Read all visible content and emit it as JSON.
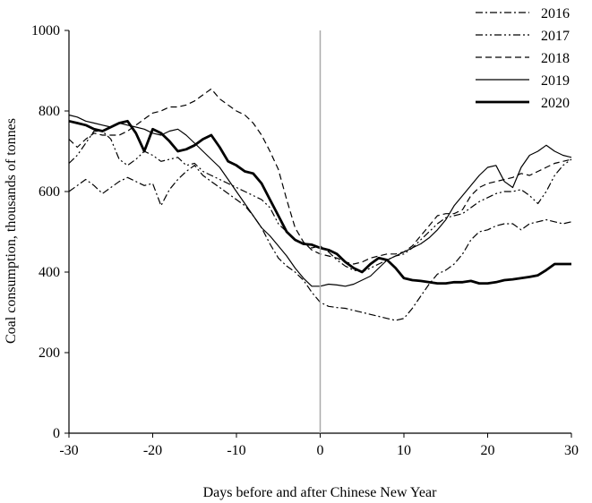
{
  "chart_data": {
    "type": "line",
    "title": "",
    "xlabel": "Days before and after Chinese New Year",
    "ylabel": "Coal consumption, thousands of tonnes",
    "xlim": [
      -30,
      30
    ],
    "ylim": [
      0,
      1000
    ],
    "xticks": [
      -30,
      -20,
      -10,
      0,
      10,
      20,
      30
    ],
    "yticks": [
      0,
      200,
      400,
      600,
      800,
      1000
    ],
    "grid": false,
    "reference_line_x": 0,
    "legend_position": "top-right",
    "x": [
      -30,
      -29,
      -28,
      -27,
      -26,
      -25,
      -24,
      -23,
      -22,
      -21,
      -20,
      -19,
      -18,
      -17,
      -16,
      -15,
      -14,
      -13,
      -12,
      -11,
      -10,
      -9,
      -8,
      -7,
      -6,
      -5,
      -4,
      -3,
      -2,
      -1,
      0,
      1,
      2,
      3,
      4,
      5,
      6,
      7,
      8,
      9,
      10,
      11,
      12,
      13,
      14,
      15,
      16,
      17,
      18,
      19,
      20,
      21,
      22,
      23,
      24,
      25,
      26,
      27,
      28,
      29,
      30
    ],
    "series": [
      {
        "name": "2016",
        "dash": "dash-dot",
        "width": 1.2,
        "values": [
          600,
          615,
          630,
          615,
          595,
          610,
          625,
          635,
          625,
          615,
          620,
          565,
          605,
          630,
          650,
          665,
          640,
          625,
          610,
          595,
          580,
          565,
          540,
          510,
          470,
          435,
          415,
          400,
          380,
          350,
          325,
          315,
          312,
          310,
          305,
          300,
          295,
          290,
          285,
          280,
          285,
          310,
          340,
          370,
          395,
          405,
          420,
          445,
          480,
          500,
          505,
          515,
          520,
          520,
          505,
          520,
          525,
          530,
          525,
          520,
          525
        ]
      },
      {
        "name": "2017",
        "dash": "dash-dot-dot",
        "width": 1.2,
        "values": [
          670,
          690,
          720,
          750,
          750,
          730,
          680,
          665,
          680,
          700,
          690,
          675,
          680,
          685,
          665,
          670,
          650,
          640,
          630,
          620,
          610,
          600,
          590,
          580,
          560,
          520,
          500,
          480,
          470,
          460,
          465,
          450,
          430,
          415,
          405,
          400,
          410,
          420,
          430,
          440,
          445,
          460,
          480,
          500,
          520,
          535,
          540,
          545,
          560,
          575,
          585,
          595,
          600,
          600,
          605,
          590,
          570,
          600,
          640,
          665,
          680
        ]
      },
      {
        "name": "2018",
        "dash": "dash",
        "width": 1.2,
        "values": [
          730,
          710,
          730,
          745,
          740,
          740,
          740,
          750,
          765,
          780,
          795,
          800,
          810,
          810,
          815,
          825,
          840,
          855,
          830,
          815,
          800,
          790,
          770,
          740,
          700,
          655,
          580,
          510,
          475,
          455,
          445,
          440,
          435,
          425,
          420,
          425,
          435,
          440,
          445,
          445,
          450,
          465,
          490,
          515,
          540,
          545,
          545,
          555,
          590,
          610,
          620,
          625,
          630,
          635,
          645,
          640,
          650,
          660,
          670,
          675,
          680
        ]
      },
      {
        "name": "2019",
        "dash": "solid",
        "width": 1.2,
        "values": [
          790,
          785,
          775,
          770,
          765,
          760,
          770,
          765,
          760,
          755,
          745,
          740,
          750,
          755,
          740,
          720,
          700,
          680,
          660,
          630,
          600,
          570,
          540,
          510,
          490,
          465,
          440,
          410,
          385,
          365,
          365,
          370,
          368,
          365,
          370,
          380,
          390,
          410,
          430,
          440,
          450,
          460,
          470,
          485,
          505,
          530,
          565,
          590,
          615,
          640,
          660,
          665,
          625,
          610,
          660,
          690,
          700,
          715,
          700,
          690,
          685
        ]
      },
      {
        "name": "2020",
        "dash": "solid",
        "width": 2.8,
        "values": [
          775,
          770,
          765,
          755,
          750,
          760,
          770,
          775,
          745,
          700,
          755,
          745,
          725,
          700,
          705,
          715,
          730,
          740,
          710,
          675,
          665,
          650,
          645,
          620,
          580,
          540,
          500,
          480,
          470,
          468,
          460,
          455,
          445,
          425,
          410,
          400,
          420,
          435,
          430,
          410,
          385,
          380,
          378,
          375,
          372,
          372,
          375,
          375,
          378,
          372,
          372,
          375,
          380,
          382,
          385,
          388,
          392,
          405,
          420,
          420,
          420
        ]
      }
    ]
  }
}
